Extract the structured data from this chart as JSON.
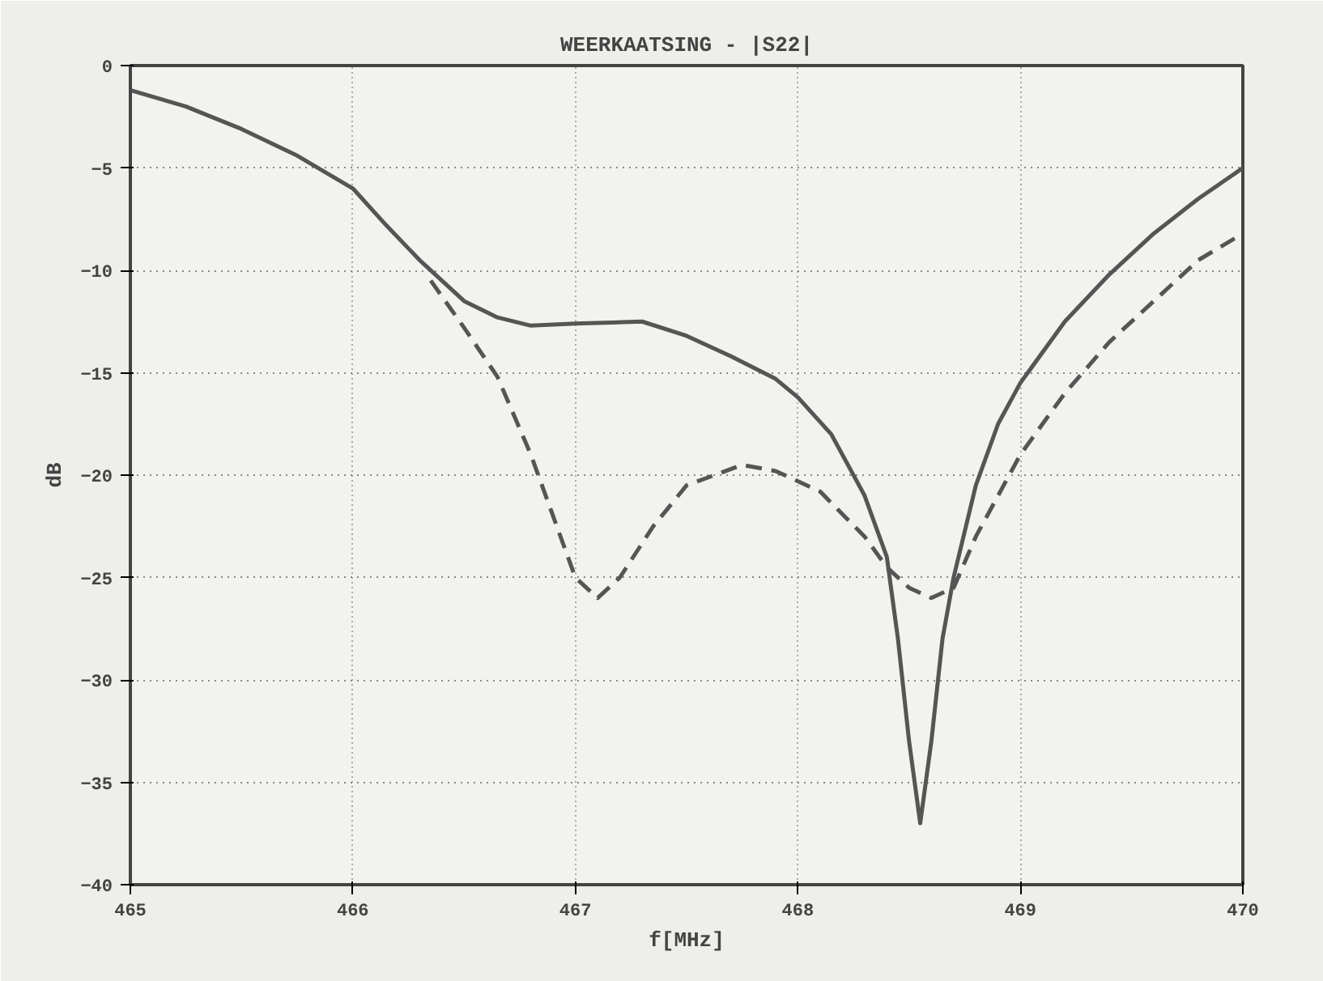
{
  "chart_data": {
    "type": "line",
    "title": "WEERKAATSING - |S22|",
    "xlabel": "f[MHz]",
    "ylabel": "dB",
    "xlim": [
      465,
      470
    ],
    "xticks": [
      465,
      466,
      467,
      468,
      469,
      470
    ],
    "ylim": [
      -40,
      0
    ],
    "yticks": [
      0,
      -5,
      -10,
      -15,
      -20,
      -25,
      -30,
      -35,
      -40
    ],
    "grid": true,
    "series": [
      {
        "color": "#555555",
        "line_style": "solid",
        "x": [
          465,
          465.25,
          465.5,
          465.75,
          466,
          466.15,
          466.3,
          466.5,
          466.65,
          466.8,
          467,
          467.3,
          467.5,
          467.7,
          467.9,
          468,
          468.15,
          468.3,
          468.4,
          468.45,
          468.5,
          468.55,
          468.6,
          468.65,
          468.7,
          468.8,
          468.9,
          469,
          469.2,
          469.4,
          469.6,
          469.8,
          470
        ],
        "values": [
          -1.2,
          -2,
          -3.1,
          -4.4,
          -6,
          -7.8,
          -9.5,
          -11.5,
          -12.3,
          -12.7,
          -12.6,
          -12.5,
          -13.2,
          -14.2,
          -15.3,
          -16.2,
          -18,
          -21,
          -24,
          -28,
          -33,
          -37,
          -33,
          -28,
          -25,
          -20.5,
          -17.5,
          -15.5,
          -12.5,
          -10.2,
          -8.2,
          -6.5,
          -5
        ]
      },
      {
        "color": "#555555",
        "line_style": "dashed",
        "x": [
          466.35,
          466.5,
          466.65,
          466.8,
          466.9,
          467,
          467.1,
          467.2,
          467.35,
          467.5,
          467.75,
          467.9,
          468.1,
          468.3,
          468.4,
          468.5,
          468.6,
          468.7,
          468.8,
          468.9,
          469,
          469.2,
          469.4,
          469.6,
          469.8,
          470
        ],
        "values": [
          -10.5,
          -12.8,
          -15.2,
          -19,
          -22,
          -25,
          -26,
          -25,
          -22.5,
          -20.5,
          -19.5,
          -19.8,
          -20.8,
          -23,
          -24.5,
          -25.5,
          -26,
          -25.5,
          -23,
          -21,
          -19,
          -16,
          -13.5,
          -11.5,
          -9.5,
          -8.2
        ]
      }
    ]
  }
}
